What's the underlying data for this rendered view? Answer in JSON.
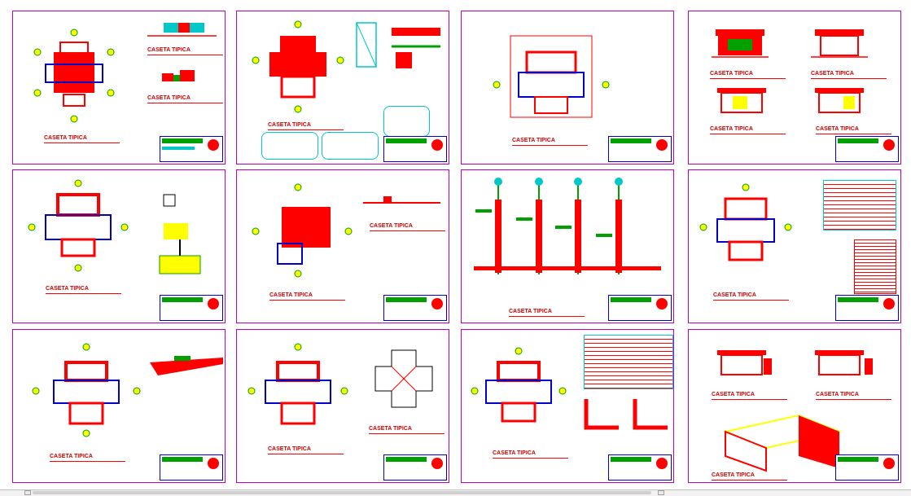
{
  "drawing": {
    "label_text": "CASETA TIPICA",
    "sheets": [
      {
        "id": "1",
        "labels": [
          "CASETA TIPICA",
          "CASETA TIPICA",
          "CASETA TIPICA"
        ]
      },
      {
        "id": "2",
        "labels": [
          "CASETA TIPICA"
        ]
      },
      {
        "id": "3",
        "labels": [
          "CASETA TIPICA"
        ]
      },
      {
        "id": "4",
        "labels": [
          "CASETA TIPICA",
          "CASETA TIPICA",
          "CASETA TIPICA",
          "CASETA TIPICA"
        ]
      },
      {
        "id": "5",
        "labels": [
          "CASETA TIPICA"
        ]
      },
      {
        "id": "6",
        "labels": [
          "CASETA TIPICA",
          "CASETA TIPICA"
        ]
      },
      {
        "id": "7",
        "labels": [
          "CASETA TIPICA"
        ]
      },
      {
        "id": "8",
        "labels": [
          "CASETA TIPICA"
        ]
      },
      {
        "id": "9",
        "labels": [
          "CASETA TIPICA"
        ]
      },
      {
        "id": "10",
        "labels": [
          "CASETA TIPICA",
          "CASETA TIPICA"
        ]
      },
      {
        "id": "11",
        "labels": [
          "CASETA TIPICA"
        ]
      },
      {
        "id": "12",
        "labels": [
          "CASETA TIPICA",
          "CASETA TIPICA",
          "CASETA TIPICA"
        ]
      }
    ]
  },
  "colors": {
    "frame": "#c000c0",
    "label": "#d00000",
    "wall": "#ff0000",
    "axis": "#00a000",
    "marker": "#ffff00",
    "outline": "#0000c8",
    "cyan": "#00c8c8"
  },
  "icons": [
    "scroll-left-icon",
    "scroll-right-icon",
    "titleblock-logo-icon"
  ]
}
